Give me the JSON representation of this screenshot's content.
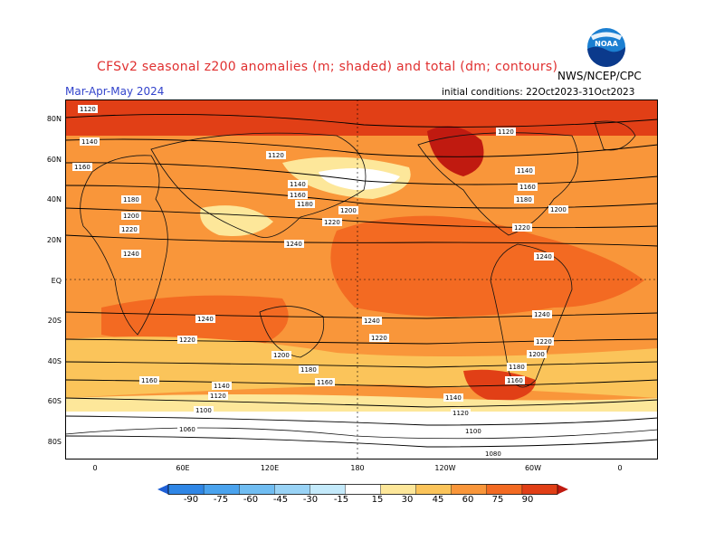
{
  "header": {
    "title": "CFSv2 seasonal z200 anomalies (m; shaded) and total (dm; contours)",
    "season": "Mar-Apr-May 2024",
    "init": "initial conditions: 22Oct2023-31Oct2023",
    "agency": "NWS/NCEP/CPC",
    "logo_text": "NOAA"
  },
  "map": {
    "lat_labels": [
      "80N",
      "60N",
      "40N",
      "20N",
      "EQ",
      "20S",
      "40S",
      "60S",
      "80S"
    ],
    "lon_labels": [
      "0",
      "60E",
      "120E",
      "180",
      "120W",
      "60W",
      "0"
    ]
  },
  "contour_labels": [
    "1120",
    "1140",
    "1160",
    "1180",
    "1200",
    "1220",
    "1240",
    "1100",
    "1080",
    "1060"
  ],
  "colorbar": {
    "labels": [
      "-90",
      "-75",
      "-60",
      "-45",
      "-30",
      "-15",
      "15",
      "30",
      "45",
      "60",
      "75",
      "90"
    ],
    "colors": [
      "#1e5fd6",
      "#2f86e6",
      "#4aa3ee",
      "#70bdf2",
      "#99d3f6",
      "#c4eafb",
      "#ffffff",
      "#fde79a",
      "#fbc45a",
      "#f9963a",
      "#f36a22",
      "#e13f16",
      "#c01a10"
    ]
  }
}
